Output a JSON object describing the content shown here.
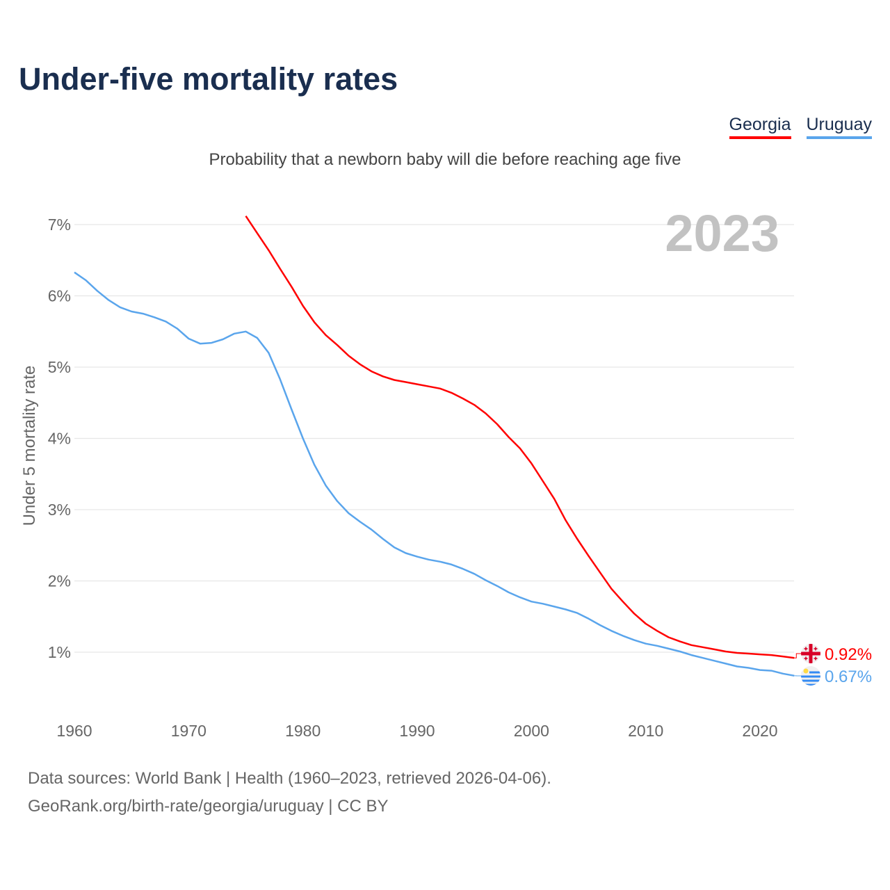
{
  "title": "Under-five mortality rates",
  "subtitle": "Probability that a newborn baby will die before reaching age five",
  "year_badge": "2023",
  "legend": [
    {
      "label": "Georgia",
      "color": "#ff0000"
    },
    {
      "label": "Uruguay",
      "color": "#5aa5ec"
    }
  ],
  "footer": {
    "line1": "Data sources: World Bank | Health (1960–2023, retrieved 2026-04-06).",
    "line2": "GeoRank.org/birth-rate/georgia/uruguay | CC BY"
  },
  "chart_data": {
    "type": "line",
    "title": "Under-five mortality rates",
    "ylabel": "Under 5 mortality rate",
    "xlabel": "",
    "xlim": [
      1960,
      2023
    ],
    "ylim": [
      0,
      7
    ],
    "x_ticks": [
      1960,
      1970,
      1980,
      1990,
      2000,
      2010,
      2020
    ],
    "x_tick_labels": [
      "1960",
      "1970",
      "1980",
      "1990",
      "2000",
      "2010",
      "2020"
    ],
    "y_ticks": [
      1,
      2,
      3,
      4,
      5,
      6,
      7
    ],
    "y_tick_labels": [
      "1%",
      "2%",
      "3%",
      "4%",
      "5%",
      "6%",
      "7%"
    ],
    "grid": true,
    "legend_position": "top-right",
    "series": [
      {
        "name": "Georgia",
        "color": "#ff0000",
        "start_year": 1975,
        "end_label": "0.92%",
        "flag": "georgia-flag",
        "values": [
          7.12,
          6.88,
          6.64,
          6.38,
          6.13,
          5.86,
          5.63,
          5.45,
          5.31,
          5.16,
          5.04,
          4.94,
          4.87,
          4.82,
          4.79,
          4.76,
          4.73,
          4.7,
          4.64,
          4.56,
          4.47,
          4.35,
          4.2,
          4.02,
          3.86,
          3.65,
          3.4,
          3.15,
          2.85,
          2.59,
          2.35,
          2.12,
          1.89,
          1.71,
          1.54,
          1.4,
          1.3,
          1.21,
          1.15,
          1.1,
          1.07,
          1.04,
          1.01,
          0.99,
          0.98,
          0.97,
          0.96,
          0.94,
          0.92
        ]
      },
      {
        "name": "Uruguay",
        "color": "#5aa5ec",
        "start_year": 1960,
        "end_label": "0.67%",
        "flag": "uruguay-flag",
        "values": [
          6.33,
          6.22,
          6.07,
          5.94,
          5.84,
          5.78,
          5.75,
          5.7,
          5.64,
          5.54,
          5.4,
          5.33,
          5.34,
          5.39,
          5.47,
          5.5,
          5.41,
          5.2,
          4.83,
          4.41,
          4.0,
          3.63,
          3.34,
          3.12,
          2.95,
          2.83,
          2.72,
          2.59,
          2.47,
          2.39,
          2.34,
          2.3,
          2.27,
          2.23,
          2.17,
          2.1,
          2.01,
          1.93,
          1.84,
          1.77,
          1.71,
          1.68,
          1.64,
          1.6,
          1.55,
          1.47,
          1.38,
          1.3,
          1.23,
          1.17,
          1.12,
          1.09,
          1.05,
          1.01,
          0.96,
          0.92,
          0.88,
          0.84,
          0.8,
          0.78,
          0.75,
          0.74,
          0.7,
          0.67
        ]
      }
    ]
  }
}
